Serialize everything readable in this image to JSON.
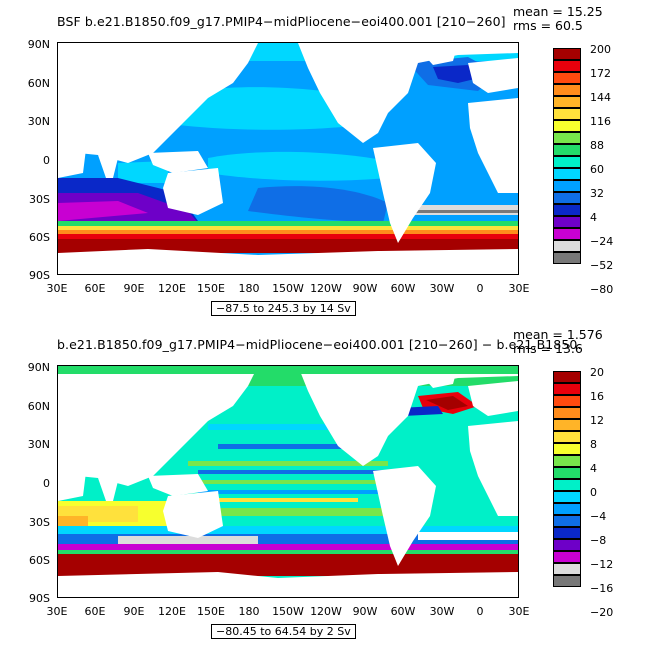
{
  "axes": {
    "y_labels": [
      "90N",
      "60N",
      "30N",
      "0",
      "30S",
      "60S",
      "90S"
    ],
    "x_labels": [
      "30E",
      "60E",
      "90E",
      "120E",
      "150E",
      "180",
      "150W",
      "120W",
      "90W",
      "60W",
      "30W",
      "0",
      "30E"
    ]
  },
  "panels": [
    {
      "title": "BSF b.e21.B1850.f09_g17.PMIP4−midPliocene−eoi400.001  [210−260]",
      "mean": "mean = 15.25",
      "rms": "rms = 60.5",
      "range": "−87.5 to 245.3 by 14 Sv",
      "colorbar_labels": [
        "200",
        "172",
        "144",
        "116",
        "88",
        "60",
        "32",
        "4",
        "−24",
        "−52",
        "−80"
      ],
      "colorbar_colors": [
        "#a50000",
        "#e8000c",
        "#ff4a0f",
        "#ff8c1c",
        "#ffb428",
        "#ffe13c",
        "#f7ff2e",
        "#78e64b",
        "#23dc69",
        "#00f0c8",
        "#00d7ff",
        "#00a0ff",
        "#0f6ee6",
        "#0a28c8",
        "#6e00c8",
        "#c800d2",
        "#dcdcdc",
        "#787878"
      ]
    },
    {
      "title": "b.e21.B1850.f09_g17.PMIP4−midPliocene−eoi400.001  [210−260] − b.e21.B1850.",
      "mean": "mean = 1.576",
      "rms": "rms = 13.6",
      "range": "−80.45 to 64.54 by 2 Sv",
      "colorbar_labels": [
        "20",
        "16",
        "12",
        "8",
        "4",
        "0",
        "−4",
        "−8",
        "−12",
        "−16",
        "−20"
      ],
      "colorbar_colors": [
        "#a50000",
        "#e8000c",
        "#ff4a0f",
        "#ff8c1c",
        "#ffb428",
        "#ffe13c",
        "#f7ff2e",
        "#78e64b",
        "#23dc69",
        "#00f0c8",
        "#00d7ff",
        "#00a0ff",
        "#0f6ee6",
        "#0a28c8",
        "#6e00c8",
        "#c800d2",
        "#dcdcdc",
        "#787878"
      ]
    }
  ]
}
